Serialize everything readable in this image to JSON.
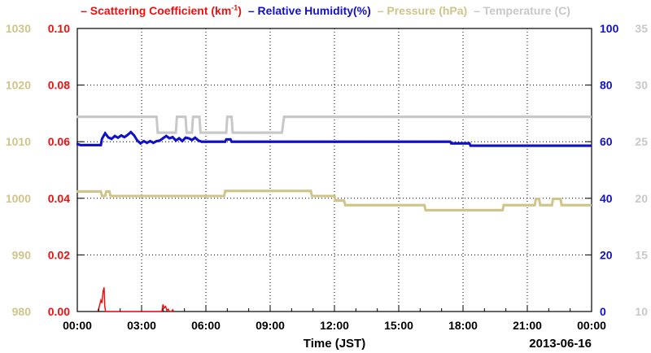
{
  "chart_data": {
    "type": "line",
    "legend": [
      {
        "key": "scattering",
        "label": "Scattering Coefficient (km",
        "sup": "-1",
        "suffix": ")",
        "color": "#ee1111"
      },
      {
        "key": "humidity",
        "label": "Relative Humidity(%)",
        "sup": "",
        "suffix": "",
        "color": "#1111cc"
      },
      {
        "key": "pressure",
        "label": "Pressure (hPa)",
        "sup": "",
        "suffix": "",
        "color": "#cfc58a"
      },
      {
        "key": "temperature",
        "label": "Temperature (",
        "sup": "",
        "suffix": "C)",
        "color": "#c8c8c8"
      }
    ],
    "xlabel": "Time (JST)",
    "date_label": "2013-06-16",
    "x_ticks": [
      "00:00",
      "03:00",
      "06:00",
      "09:00",
      "12:00",
      "15:00",
      "18:00",
      "21:00",
      "00:00"
    ],
    "xlim_hours": [
      0,
      24
    ],
    "axes": {
      "pressure": {
        "ylim": [
          980,
          1030
        ],
        "ticks": [
          "1030",
          "1020",
          "1010",
          "1000",
          "990",
          "980"
        ],
        "color": "#cfc58a"
      },
      "scattering": {
        "ylim": [
          0,
          0.1
        ],
        "ticks": [
          "0.10",
          "0.08",
          "0.06",
          "0.04",
          "0.02",
          "0.00"
        ],
        "color": "#ee1111"
      },
      "humidity": {
        "ylim": [
          0,
          100
        ],
        "ticks": [
          "100",
          "80",
          "60",
          "40",
          "20",
          "0"
        ],
        "color": "#1111cc"
      },
      "temperature": {
        "ylim": [
          10,
          35
        ],
        "ticks": [
          "35",
          "30",
          "25",
          "20",
          "15",
          "10"
        ],
        "color": "#c8c8c8"
      }
    },
    "grid": true,
    "series": [
      {
        "name": "Temperature",
        "axis": "temperature",
        "color": "#c8c8c8",
        "points": [
          [
            0,
            27.2
          ],
          [
            3.7,
            27.2
          ],
          [
            3.75,
            25.8
          ],
          [
            4.6,
            25.8
          ],
          [
            4.65,
            27.2
          ],
          [
            5.05,
            27.2
          ],
          [
            5.1,
            25.8
          ],
          [
            5.35,
            25.8
          ],
          [
            5.4,
            27.2
          ],
          [
            5.7,
            27.2
          ],
          [
            5.75,
            25.8
          ],
          [
            6.95,
            25.8
          ],
          [
            7.0,
            27.2
          ],
          [
            7.2,
            27.2
          ],
          [
            7.25,
            25.8
          ],
          [
            9.55,
            25.8
          ],
          [
            9.65,
            27.2
          ],
          [
            24,
            27.2
          ]
        ]
      },
      {
        "name": "Relative Humidity",
        "axis": "humidity",
        "color": "#1111cc",
        "points": [
          [
            0,
            59.2
          ],
          [
            0.15,
            58.8
          ],
          [
            1.1,
            58.8
          ],
          [
            1.15,
            61
          ],
          [
            1.3,
            63
          ],
          [
            1.45,
            61.5
          ],
          [
            1.6,
            61
          ],
          [
            1.75,
            62
          ],
          [
            1.9,
            61.4
          ],
          [
            2.05,
            62.2
          ],
          [
            2.2,
            61.6
          ],
          [
            2.35,
            62.4
          ],
          [
            2.5,
            63.4
          ],
          [
            2.65,
            62.2
          ],
          [
            2.8,
            60.4
          ],
          [
            2.95,
            59.4
          ],
          [
            3.1,
            60.2
          ],
          [
            3.25,
            59.6
          ],
          [
            3.4,
            60.2
          ],
          [
            3.55,
            59.6
          ],
          [
            3.7,
            60.2
          ],
          [
            3.85,
            60.4
          ],
          [
            4.0,
            61.2
          ],
          [
            4.15,
            62
          ],
          [
            4.3,
            61.2
          ],
          [
            4.45,
            61.6
          ],
          [
            4.6,
            60.4
          ],
          [
            4.75,
            61.2
          ],
          [
            4.9,
            60.2
          ],
          [
            5.05,
            61.4
          ],
          [
            5.2,
            61.2
          ],
          [
            5.35,
            60.6
          ],
          [
            5.5,
            61.4
          ],
          [
            5.65,
            60.4
          ],
          [
            5.8,
            60
          ],
          [
            6.9,
            60
          ],
          [
            6.95,
            60.8
          ],
          [
            7.15,
            60.8
          ],
          [
            7.2,
            60
          ],
          [
            17.4,
            60
          ],
          [
            17.45,
            59.4
          ],
          [
            18.3,
            59.4
          ],
          [
            18.35,
            58.6
          ],
          [
            24,
            58.6
          ]
        ]
      },
      {
        "name": "Pressure",
        "axis": "pressure",
        "color": "#cfc58a",
        "points": [
          [
            0,
            1001.2
          ],
          [
            1.1,
            1001.2
          ],
          [
            1.15,
            1000.4
          ],
          [
            1.3,
            1000.4
          ],
          [
            1.35,
            1001.2
          ],
          [
            1.5,
            1001.2
          ],
          [
            1.55,
            1000.4
          ],
          [
            6.85,
            1000.4
          ],
          [
            6.9,
            1001.3
          ],
          [
            10.9,
            1001.3
          ],
          [
            10.95,
            1000.4
          ],
          [
            12.0,
            1000.4
          ],
          [
            12.05,
            999.6
          ],
          [
            12.45,
            999.6
          ],
          [
            12.5,
            998.8
          ],
          [
            16.2,
            998.8
          ],
          [
            16.25,
            997.9
          ],
          [
            19.85,
            997.9
          ],
          [
            19.9,
            998.8
          ],
          [
            21.35,
            998.8
          ],
          [
            21.4,
            999.9
          ],
          [
            21.55,
            999.9
          ],
          [
            21.6,
            998.8
          ],
          [
            22.15,
            998.8
          ],
          [
            22.2,
            999.9
          ],
          [
            22.55,
            999.9
          ],
          [
            22.6,
            998.8
          ],
          [
            24,
            998.8
          ]
        ]
      },
      {
        "name": "Scattering Coefficient",
        "axis": "scattering",
        "color": "#ee1111",
        "points": [
          [
            0.95,
            0.0
          ],
          [
            1.0,
            0.001
          ],
          [
            1.1,
            0.004
          ],
          [
            1.15,
            0.003
          ],
          [
            1.2,
            0.007
          ],
          [
            1.25,
            0.0085
          ],
          [
            1.28,
            0.002
          ],
          [
            1.32,
            0.0
          ],
          [
            3.95,
            0.0
          ],
          [
            4.0,
            0.0025
          ],
          [
            4.05,
            0.0012
          ],
          [
            4.12,
            0.0018
          ],
          [
            4.18,
            0.0004
          ],
          [
            4.25,
            0.0008
          ],
          [
            4.3,
            0.0
          ],
          [
            4.4,
            0.0
          ],
          [
            4.45,
            0.0006
          ],
          [
            4.5,
            0.0
          ]
        ]
      }
    ]
  }
}
